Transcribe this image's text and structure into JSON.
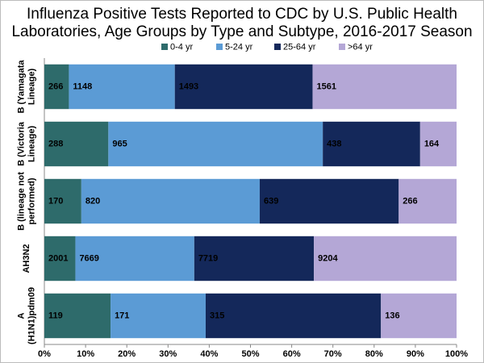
{
  "chart_data": {
    "type": "bar",
    "orientation": "horizontal",
    "stacking": "percent",
    "title": [
      "Influenza Positive Tests Reported to CDC by U.S. Public Health",
      "Laboratories, Age Groups by Type and Subtype, 2016-2017 Season"
    ],
    "categories": [
      [
        "B (Yamagata",
        "Lineage)"
      ],
      [
        "B (Victoria",
        "Lineage)"
      ],
      [
        "B (lineage not",
        "performed)"
      ],
      [
        "AH3N2"
      ],
      [
        "A",
        "(H1N1)pdm09"
      ]
    ],
    "series": [
      {
        "name": "0-4 yr",
        "color": "#2e6b6b",
        "label_color": "#ffffff",
        "values": [
          266,
          288,
          170,
          2001,
          119
        ]
      },
      {
        "name": "5-24 yr",
        "color": "#5b9bd5",
        "label_color": "#ffffff",
        "values": [
          1148,
          965,
          820,
          7669,
          171
        ]
      },
      {
        "name": "25-64 yr",
        "color": "#14285a",
        "label_color": "#ffffff",
        "values": [
          1493,
          438,
          639,
          7719,
          315
        ]
      },
      {
        "name": ">64 yr",
        "color": "#b4a7d6",
        "label_color": "#1f2d5c",
        "values": [
          1561,
          164,
          266,
          9204,
          136
        ]
      }
    ],
    "xlim": [
      0,
      100
    ],
    "xticks": [
      {
        "value": 0,
        "label": "0%"
      },
      {
        "value": 10,
        "label": "10%"
      },
      {
        "value": 20,
        "label": "20%"
      },
      {
        "value": 30,
        "label": "30%"
      },
      {
        "value": 40,
        "label": "40%"
      },
      {
        "value": 50,
        "label": "50%"
      },
      {
        "value": 60,
        "label": "60%"
      },
      {
        "value": 70,
        "label": "70%"
      },
      {
        "value": 80,
        "label": "80%"
      },
      {
        "value": 90,
        "label": "90%"
      },
      {
        "value": 100,
        "label": "100%"
      }
    ],
    "legend": "top"
  }
}
